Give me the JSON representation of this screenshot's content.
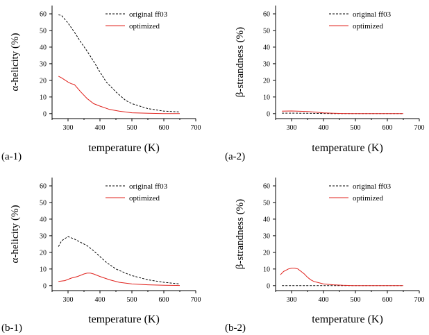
{
  "chart_data": [
    {
      "type": "line",
      "panel_label": "(a-1)",
      "xlabel": "temperature (K)",
      "ylabel": "α-helicity (%)",
      "xlim": [
        250,
        700
      ],
      "ylim": [
        -3,
        65
      ],
      "xticks": [
        300,
        400,
        500,
        600,
        700
      ],
      "yticks": [
        0,
        10,
        20,
        30,
        40,
        50,
        60
      ],
      "legend": "top-right",
      "series": [
        {
          "name": "original ff03",
          "color": "#000000",
          "style": "dashed",
          "x": [
            270,
            280,
            300,
            320,
            340,
            360,
            380,
            400,
            420,
            450,
            480,
            500,
            550,
            600,
            650
          ],
          "y": [
            59.5,
            59,
            54.5,
            49,
            43,
            37.5,
            31.5,
            25,
            19,
            13,
            8,
            6,
            3,
            1.5,
            1
          ]
        },
        {
          "name": "optimized",
          "color": "#e0201b",
          "style": "solid",
          "x": [
            270,
            280,
            300,
            310,
            320,
            340,
            360,
            380,
            400,
            430,
            460,
            500,
            550,
            600,
            650
          ],
          "y": [
            22.5,
            21.5,
            19,
            18,
            17.5,
            13,
            9,
            6,
            4.5,
            2.5,
            1.5,
            0.5,
            0.2,
            0,
            0
          ]
        }
      ]
    },
    {
      "type": "line",
      "panel_label": "(a-2)",
      "xlabel": "temperature (K)",
      "ylabel": "β-strandness (%)",
      "xlim": [
        250,
        700
      ],
      "ylim": [
        -3,
        65
      ],
      "xticks": [
        300,
        400,
        500,
        600,
        700
      ],
      "yticks": [
        0,
        10,
        20,
        30,
        40,
        50,
        60
      ],
      "legend": "top-right",
      "series": [
        {
          "name": "original ff03",
          "color": "#000000",
          "style": "dashed",
          "x": [
            270,
            300,
            350,
            400,
            450,
            500,
            550,
            600,
            650
          ],
          "y": [
            0.3,
            0.3,
            0.2,
            0.1,
            0,
            0,
            0,
            0,
            0
          ]
        },
        {
          "name": "optimized",
          "color": "#e0201b",
          "style": "solid",
          "x": [
            270,
            300,
            350,
            380,
            400,
            430,
            460,
            500,
            550,
            600,
            650
          ],
          "y": [
            1.5,
            1.6,
            1.3,
            0.8,
            0.4,
            0.2,
            0.1,
            0,
            0,
            0,
            0
          ]
        }
      ]
    },
    {
      "type": "line",
      "panel_label": "(b-1)",
      "xlabel": "temperature (K)",
      "ylabel": "α-helicity (%)",
      "xlim": [
        250,
        700
      ],
      "ylim": [
        -3,
        65
      ],
      "xticks": [
        300,
        400,
        500,
        600,
        700
      ],
      "yticks": [
        0,
        10,
        20,
        30,
        40,
        50,
        60
      ],
      "legend": "top-right",
      "series": [
        {
          "name": "original ff03",
          "color": "#000000",
          "style": "dashed",
          "x": [
            270,
            280,
            300,
            320,
            340,
            360,
            380,
            400,
            420,
            450,
            480,
            500,
            550,
            600,
            650
          ],
          "y": [
            23.5,
            27,
            29.5,
            28,
            26,
            24,
            21,
            17.5,
            14,
            10,
            7.5,
            6,
            3.5,
            2,
            1
          ]
        },
        {
          "name": "optimized",
          "color": "#e0201b",
          "style": "solid",
          "x": [
            270,
            290,
            310,
            330,
            350,
            360,
            370,
            380,
            400,
            430,
            460,
            500,
            550,
            600,
            650
          ],
          "y": [
            2.5,
            3,
            4.5,
            5.5,
            7,
            7.5,
            7.5,
            7,
            5.5,
            3.5,
            2,
            1,
            0.5,
            0.2,
            0.1
          ]
        }
      ]
    },
    {
      "type": "line",
      "panel_label": "(b-2)",
      "xlabel": "temperature (K)",
      "ylabel": "β-strandness (%)",
      "xlim": [
        250,
        700
      ],
      "ylim": [
        -3,
        65
      ],
      "xticks": [
        300,
        400,
        500,
        600,
        700
      ],
      "yticks": [
        0,
        10,
        20,
        30,
        40,
        50,
        60
      ],
      "legend": "top-right",
      "series": [
        {
          "name": "original ff03",
          "color": "#000000",
          "style": "dashed",
          "x": [
            270,
            300,
            400,
            500,
            600,
            650
          ],
          "y": [
            0,
            0,
            0,
            0,
            0,
            0
          ]
        },
        {
          "name": "optimized",
          "color": "#e0201b",
          "style": "solid",
          "x": [
            265,
            275,
            290,
            300,
            310,
            320,
            330,
            340,
            350,
            360,
            370,
            380,
            400,
            430,
            460,
            500,
            550,
            600,
            650
          ],
          "y": [
            6.5,
            8.5,
            10,
            10.5,
            10.5,
            10,
            8.5,
            7,
            5,
            3.5,
            2.5,
            2,
            1,
            0.5,
            0.2,
            0,
            0,
            0,
            0
          ]
        }
      ]
    }
  ]
}
